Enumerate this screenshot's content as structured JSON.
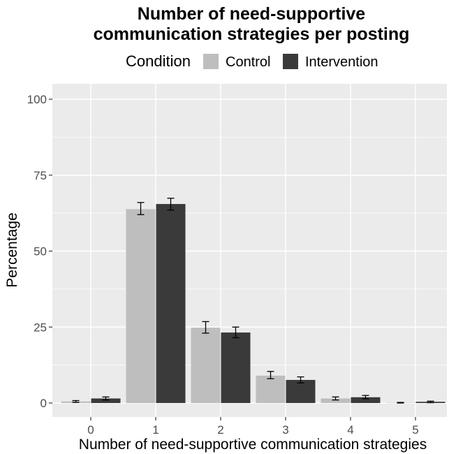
{
  "chart_data": {
    "type": "bar",
    "title_lines": [
      "Number of need-supportive",
      "communication strategies per posting"
    ],
    "xlabel": "Number of need-supportive communication strategies",
    "ylabel": "Percentage",
    "categories": [
      "0",
      "1",
      "2",
      "3",
      "4",
      "5"
    ],
    "yticks": [
      "0",
      "25",
      "50",
      "75",
      "100"
    ],
    "ylim": [
      0,
      100
    ],
    "grid": true,
    "legend": {
      "position": "top",
      "title": "Condition",
      "entries": [
        "Control",
        "Intervention"
      ]
    },
    "series": [
      {
        "name": "Control",
        "color": "#bebebe",
        "values": [
          0.5,
          63.8,
          24.8,
          9.0,
          1.5,
          0.1
        ],
        "err_low": [
          0.2,
          62.0,
          23.0,
          8.0,
          1.0,
          0.0
        ],
        "err_high": [
          0.8,
          66.0,
          26.8,
          10.4,
          2.0,
          0.2
        ]
      },
      {
        "name": "Intervention",
        "color": "#3a3a3a",
        "values": [
          1.5,
          65.5,
          23.2,
          7.6,
          1.9,
          0.4
        ],
        "err_low": [
          1.0,
          63.5,
          21.5,
          6.6,
          1.4,
          0.1
        ],
        "err_high": [
          2.0,
          67.4,
          25.0,
          8.6,
          2.5,
          0.6
        ]
      }
    ]
  }
}
